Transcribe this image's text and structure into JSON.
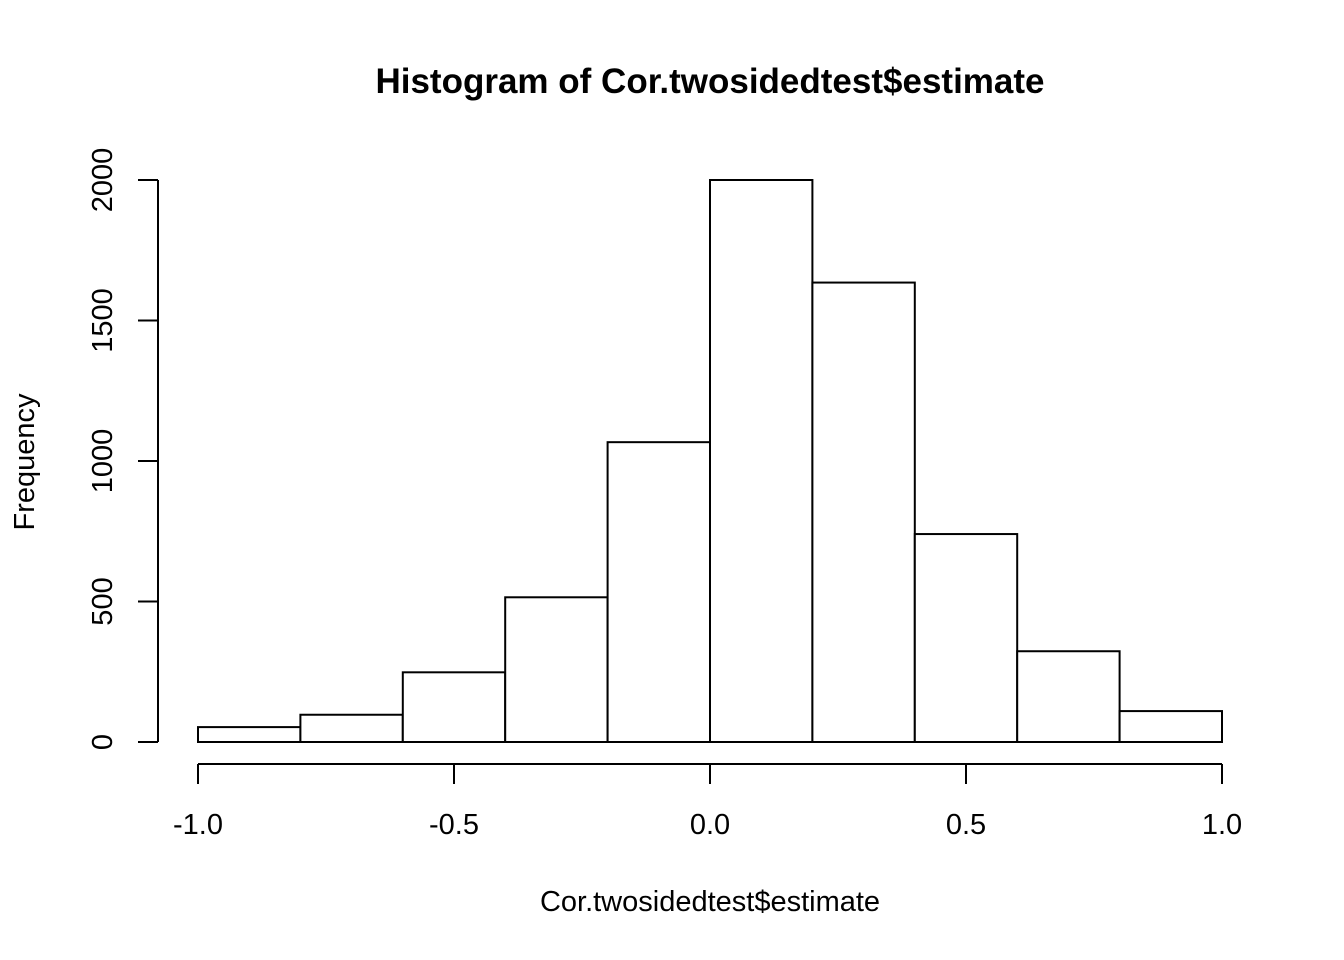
{
  "chart_data": {
    "type": "bar",
    "title": "Histogram of Cor.twosidedtest$estimate",
    "xlabel": "Cor.twosidedtest$estimate",
    "ylabel": "Frequency",
    "bins": [
      {
        "x0": -1.0,
        "x1": -0.8,
        "value": 53
      },
      {
        "x0": -0.8,
        "x1": -0.6,
        "value": 97
      },
      {
        "x0": -0.6,
        "x1": -0.4,
        "value": 248
      },
      {
        "x0": -0.4,
        "x1": -0.2,
        "value": 515
      },
      {
        "x0": -0.2,
        "x1": 0.0,
        "value": 1067
      },
      {
        "x0": 0.0,
        "x1": 0.2,
        "value": 2000
      },
      {
        "x0": 0.2,
        "x1": 0.4,
        "value": 1635
      },
      {
        "x0": 0.4,
        "x1": 0.6,
        "value": 740
      },
      {
        "x0": 0.6,
        "x1": 0.8,
        "value": 323
      },
      {
        "x0": 0.8,
        "x1": 1.0,
        "value": 110
      }
    ],
    "xticks": [
      -1.0,
      -0.5,
      0.0,
      0.5,
      1.0
    ],
    "xtick_labels": [
      "-1.0",
      "-0.5",
      "0.0",
      "0.5",
      "1.0"
    ],
    "yticks": [
      0,
      500,
      1000,
      1500,
      2000
    ],
    "ytick_labels": [
      "0",
      "500",
      "1000",
      "1500",
      "2000"
    ],
    "xlim": [
      -1.0,
      1.0
    ],
    "ylim": [
      0,
      2000
    ],
    "grid": false,
    "legend": "none",
    "colors": {
      "bar_fill": "#ffffff",
      "bar_stroke": "#000000"
    }
  }
}
